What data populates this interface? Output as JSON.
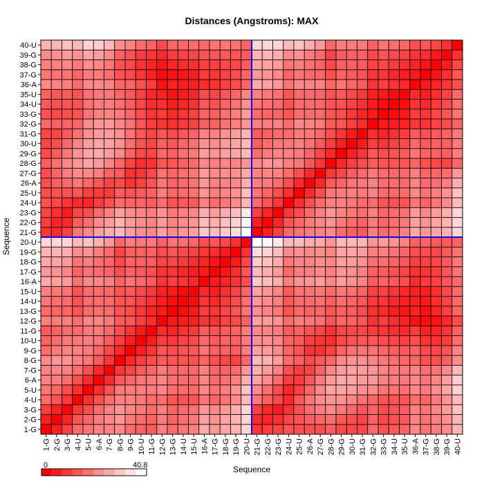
{
  "chart_data": {
    "type": "heatmap",
    "title": "Distances (Angstroms):  MAX",
    "xlabel": "Sequence",
    "ylabel": "Sequence",
    "categories": [
      "1-G",
      "2-G",
      "3-G",
      "4-U",
      "5-U",
      "6-A",
      "7-G",
      "8-G",
      "9-G",
      "10-U",
      "11-G",
      "12-G",
      "13-G",
      "14-U",
      "15-U",
      "16-A",
      "17-G",
      "18-G",
      "19-G",
      "20-U",
      "21-G",
      "22-G",
      "23-G",
      "24-U",
      "25-U",
      "26-A",
      "27-G",
      "28-G",
      "29-G",
      "30-U",
      "31-G",
      "32-G",
      "33-G",
      "34-U",
      "35-U",
      "36-A",
      "37-G",
      "38-G",
      "39-G",
      "40-U"
    ],
    "colorscale": {
      "min_label": "0",
      "max_label": "40.8",
      "min": 0,
      "max": 40.8,
      "low_color": "#ff0000",
      "high_color": "#ffffff"
    },
    "divider_after": "20-U",
    "divider_color": "#0000ff",
    "note": "value = distance between residue pairs; matrix is symmetric with zeros on the diagonal"
  }
}
